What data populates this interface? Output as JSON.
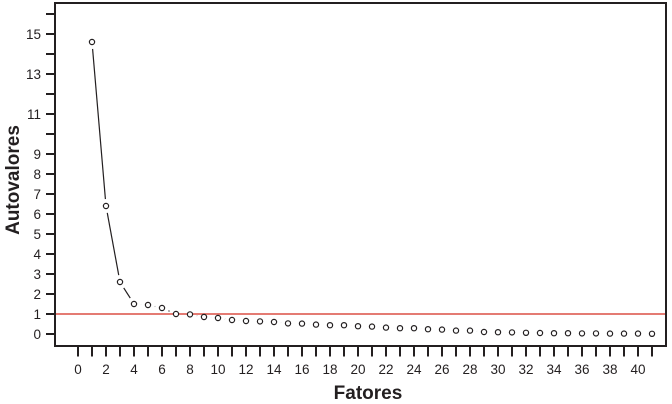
{
  "chart_data": {
    "type": "line",
    "title": "",
    "xlabel": "Fatores",
    "ylabel": "Autovalores",
    "marker": "open-circle",
    "line_color": "#231f20",
    "background": "#ffffff",
    "grid": false,
    "legend": null,
    "x": [
      1,
      2,
      3,
      4,
      5,
      6,
      7,
      8,
      9,
      10,
      11,
      12,
      13,
      14,
      15,
      16,
      17,
      18,
      19,
      20,
      21,
      22,
      23,
      24,
      25,
      26,
      27,
      28,
      29,
      30,
      31,
      32,
      33,
      34,
      35,
      36,
      37,
      38,
      39,
      40,
      41
    ],
    "values": [
      14.6,
      6.4,
      2.6,
      1.5,
      1.45,
      1.3,
      1.0,
      0.98,
      0.85,
      0.8,
      0.7,
      0.65,
      0.63,
      0.6,
      0.53,
      0.52,
      0.47,
      0.44,
      0.44,
      0.39,
      0.37,
      0.32,
      0.29,
      0.29,
      0.24,
      0.22,
      0.17,
      0.17,
      0.1,
      0.09,
      0.08,
      0.06,
      0.05,
      0.04,
      0.04,
      0.03,
      0.03,
      0.02,
      0.02,
      0.02,
      0.01
    ],
    "reference_line": {
      "y": 1,
      "color": "#e0685f",
      "meaning": "eigenvalue = 1 threshold"
    },
    "axes": {
      "x_ticks": {
        "min": 0,
        "max": 41,
        "step": 1
      },
      "x_tick_labels": [
        0,
        2,
        4,
        6,
        8,
        10,
        12,
        14,
        16,
        18,
        20,
        22,
        24,
        26,
        28,
        30,
        32,
        34,
        36,
        38,
        40
      ],
      "y_ticks": {
        "min": 0,
        "max": 16,
        "step": 1
      },
      "y_tick_labels": [
        0,
        1,
        2,
        3,
        4,
        5,
        6,
        7,
        8,
        9,
        11,
        13,
        15
      ],
      "xlim": [
        0,
        41
      ],
      "ylim": [
        0,
        16.5
      ]
    }
  }
}
